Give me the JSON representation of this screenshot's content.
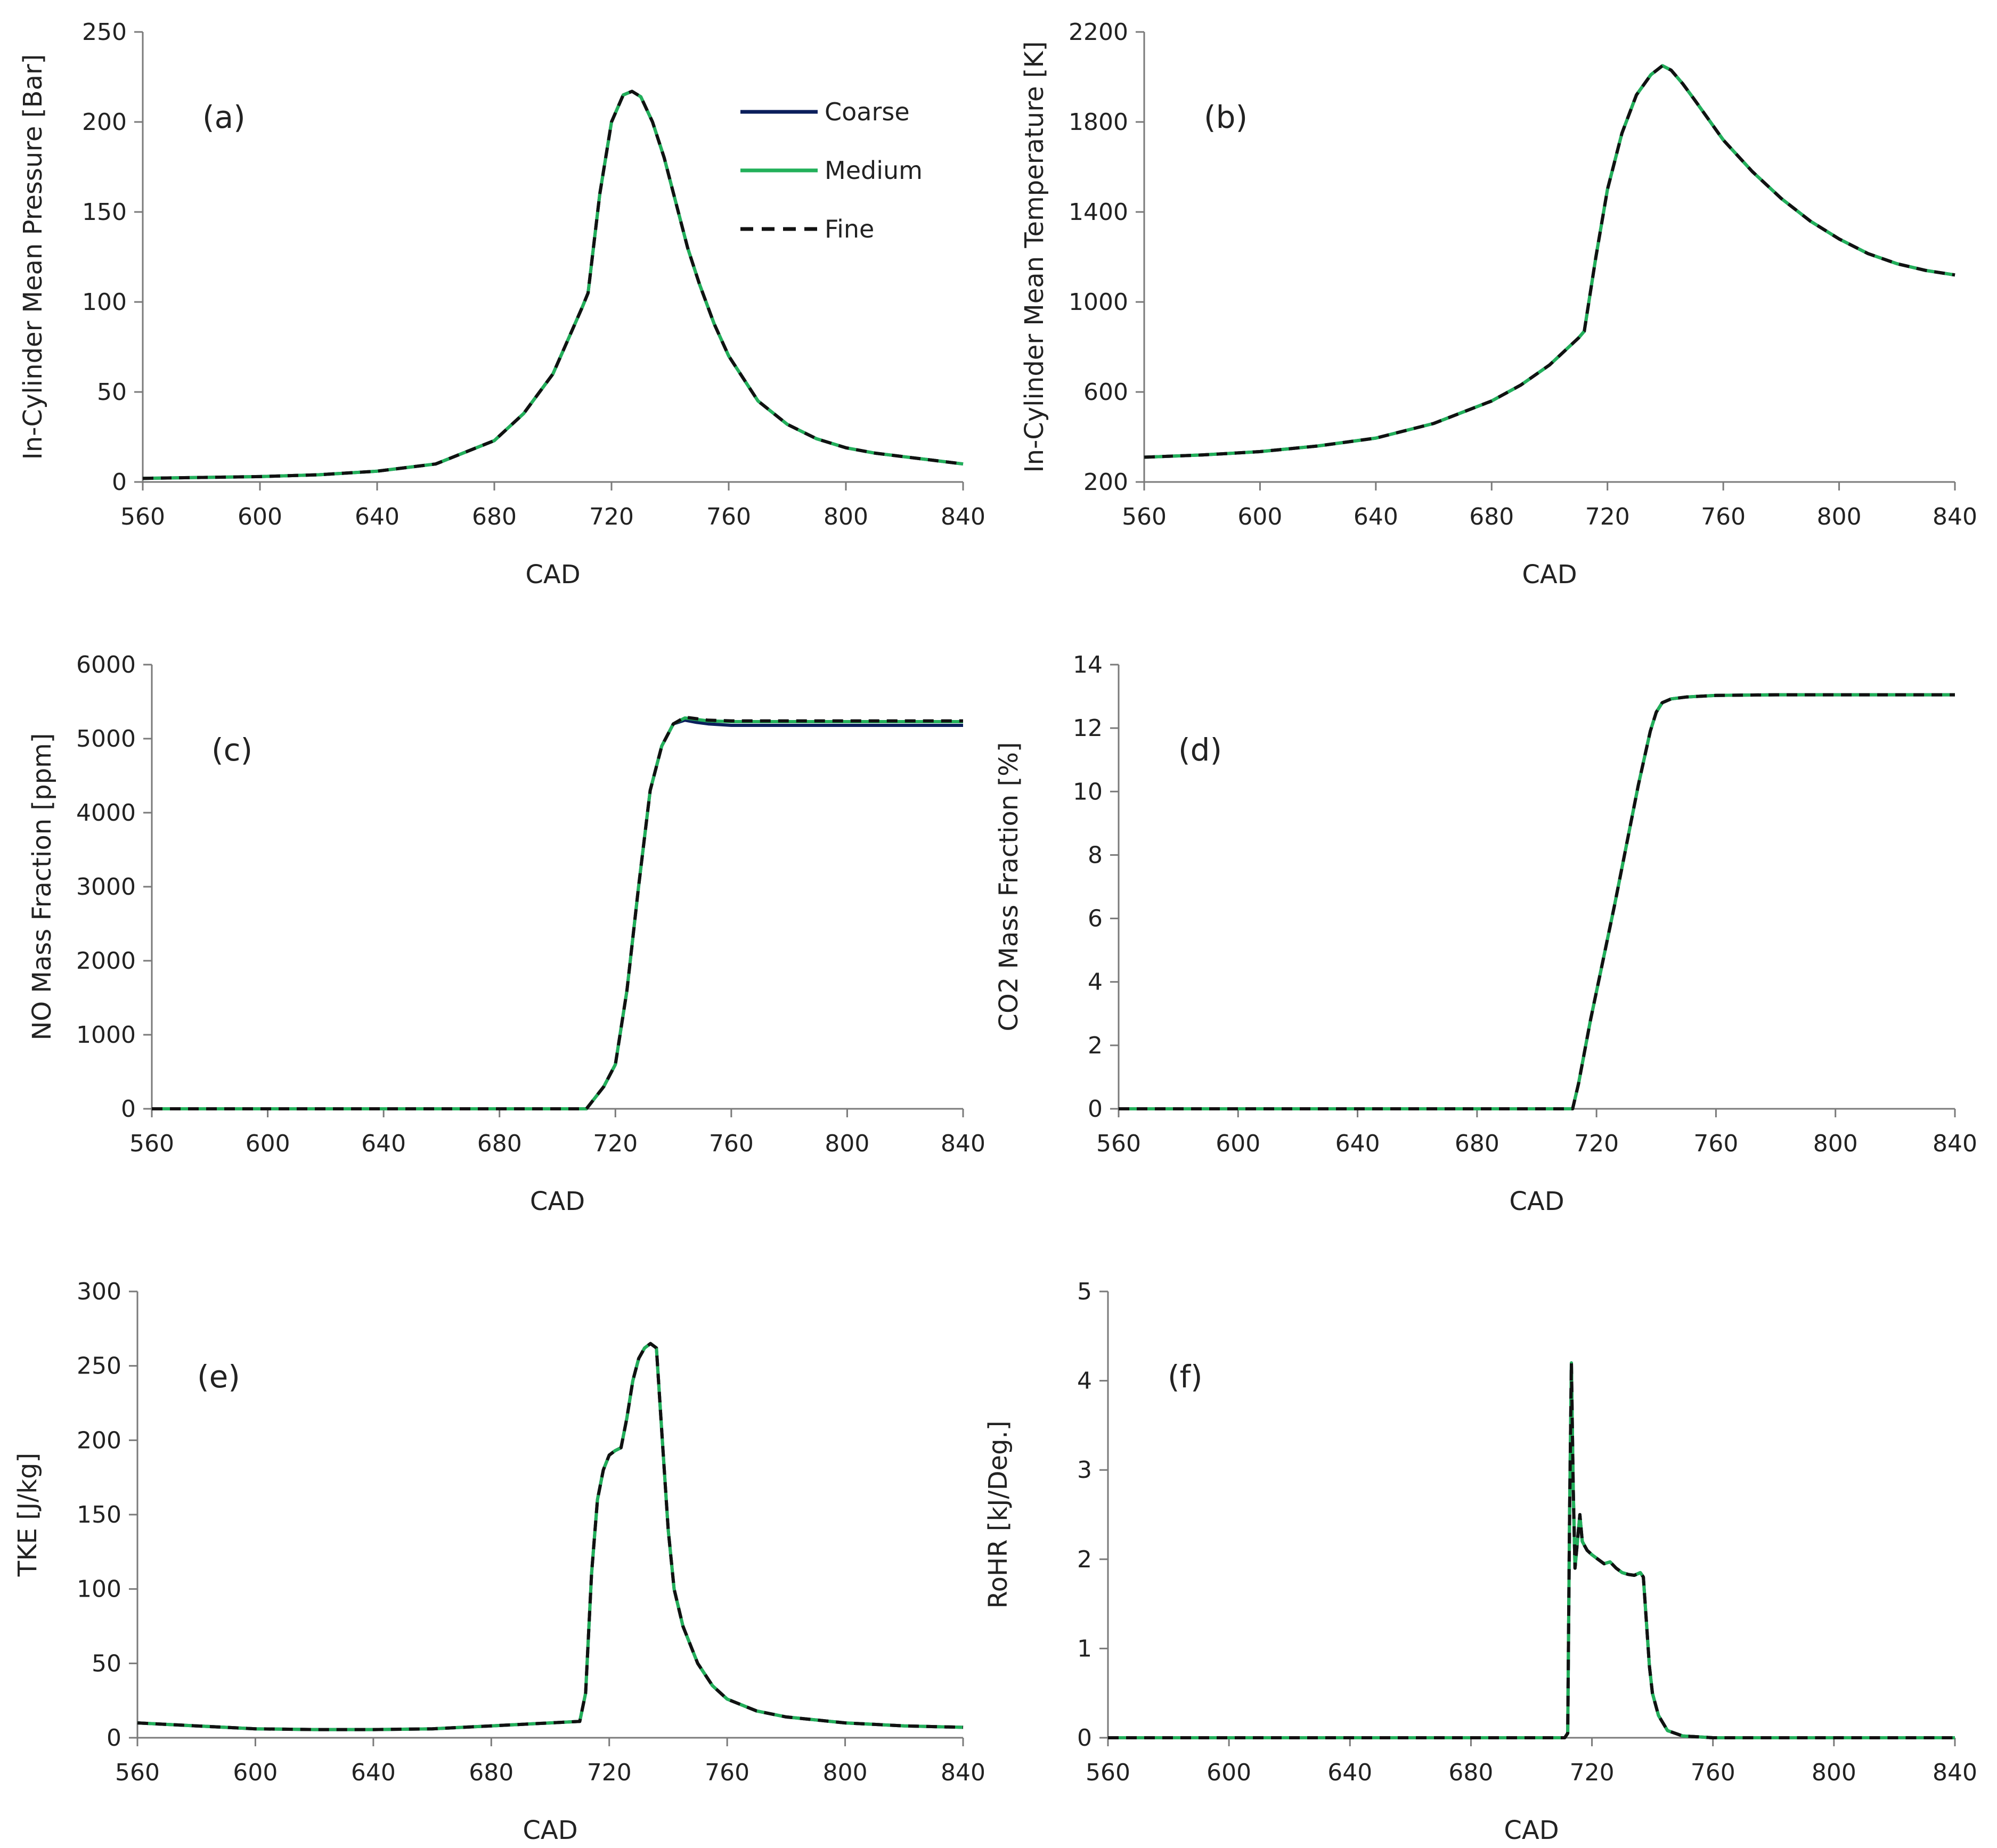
{
  "colors": {
    "coarse": "#0b1f5c",
    "medium": "#22b05a",
    "fine": "#111111",
    "axis": "#7a7a7a"
  },
  "legend": {
    "placement": "top-right of panel (a)",
    "items": [
      {
        "name": "Coarse",
        "color": "#0b1f5c",
        "style": "solid"
      },
      {
        "name": "Medium",
        "color": "#22b05a",
        "style": "solid"
      },
      {
        "name": "Fine",
        "color": "#111111",
        "style": "dashed"
      }
    ]
  },
  "chart_data": [
    {
      "id": "a",
      "type": "line",
      "label": "(a)",
      "ylabel": "In-Cylinder Mean Pressure [Bar]",
      "xlabel": "CAD",
      "xlim": [
        560,
        840
      ],
      "ylim": [
        0,
        250
      ],
      "xticks": [
        "560",
        "600",
        "640",
        "680",
        "720",
        "760",
        "800",
        "840"
      ],
      "yticks": [
        "0",
        "50",
        "100",
        "150",
        "200",
        "250"
      ],
      "x": [
        560,
        580,
        600,
        620,
        640,
        660,
        680,
        690,
        700,
        710,
        712,
        716,
        720,
        724,
        727,
        730,
        734,
        738,
        742,
        746,
        750,
        755,
        760,
        770,
        780,
        790,
        800,
        810,
        820,
        830,
        840
      ],
      "series": [
        {
          "name": "Coarse",
          "values": [
            2,
            2.5,
            3,
            4,
            6,
            10,
            23,
            38,
            60,
            97,
            105,
            160,
            200,
            215,
            217,
            214,
            200,
            180,
            155,
            130,
            110,
            88,
            70,
            45,
            32,
            24,
            19,
            16,
            14,
            12,
            10
          ]
        },
        {
          "name": "Medium",
          "values": [
            2,
            2.5,
            3,
            4,
            6,
            10,
            23,
            38,
            60,
            97,
            105,
            160,
            200,
            215,
            217,
            214,
            200,
            180,
            155,
            130,
            110,
            88,
            70,
            45,
            32,
            24,
            19,
            16,
            14,
            12,
            10
          ]
        },
        {
          "name": "Fine",
          "values": [
            2,
            2.5,
            3,
            4,
            6,
            10,
            23,
            38,
            60,
            97,
            105,
            160,
            200,
            215,
            217,
            214,
            200,
            180,
            155,
            130,
            110,
            88,
            70,
            45,
            32,
            24,
            19,
            16,
            14,
            12,
            10
          ]
        }
      ]
    },
    {
      "id": "b",
      "type": "line",
      "label": "(b)",
      "ylabel": "In-Cylinder Mean Temperature [K]",
      "xlabel": "CAD",
      "xlim": [
        560,
        840
      ],
      "ylim": [
        200,
        2200
      ],
      "xticks": [
        "560",
        "600",
        "640",
        "680",
        "720",
        "760",
        "800",
        "840"
      ],
      "yticks": [
        "200",
        "600",
        "1000",
        "1400",
        "1800",
        "2200"
      ],
      "x": [
        560,
        580,
        600,
        620,
        640,
        660,
        680,
        690,
        700,
        710,
        712,
        716,
        720,
        725,
        730,
        735,
        739,
        742,
        746,
        750,
        760,
        770,
        780,
        790,
        800,
        810,
        820,
        830,
        840
      ],
      "series": [
        {
          "name": "Coarse",
          "values": [
            310,
            320,
            335,
            360,
            395,
            460,
            560,
            630,
            720,
            840,
            870,
            1200,
            1500,
            1750,
            1920,
            2010,
            2050,
            2030,
            1970,
            1900,
            1720,
            1580,
            1460,
            1360,
            1280,
            1215,
            1170,
            1140,
            1120
          ]
        },
        {
          "name": "Medium",
          "values": [
            310,
            320,
            335,
            360,
            395,
            460,
            560,
            630,
            720,
            840,
            870,
            1200,
            1500,
            1750,
            1920,
            2010,
            2050,
            2030,
            1970,
            1900,
            1720,
            1580,
            1460,
            1360,
            1280,
            1215,
            1170,
            1140,
            1120
          ]
        },
        {
          "name": "Fine",
          "values": [
            310,
            320,
            335,
            360,
            395,
            460,
            560,
            630,
            720,
            840,
            870,
            1200,
            1500,
            1750,
            1920,
            2010,
            2050,
            2030,
            1970,
            1900,
            1720,
            1580,
            1460,
            1360,
            1280,
            1215,
            1170,
            1140,
            1120
          ]
        }
      ]
    },
    {
      "id": "c",
      "type": "line",
      "label": "(c)",
      "ylabel": "NO Mass Fraction [ppm]",
      "xlabel": "CAD",
      "xlim": [
        560,
        840
      ],
      "ylim": [
        0,
        6000
      ],
      "xticks": [
        "560",
        "600",
        "640",
        "680",
        "720",
        "760",
        "800",
        "840"
      ],
      "yticks": [
        "0",
        "1000",
        "2000",
        "3000",
        "4000",
        "5000",
        "6000"
      ],
      "x": [
        560,
        600,
        640,
        680,
        710,
        713,
        716,
        720,
        724,
        728,
        732,
        736,
        740,
        744,
        748,
        752,
        760,
        780,
        800,
        820,
        840
      ],
      "series": [
        {
          "name": "Coarse",
          "values": [
            0,
            0,
            0,
            0,
            0,
            150,
            300,
            600,
            1600,
            3000,
            4300,
            4900,
            5200,
            5250,
            5220,
            5200,
            5180,
            5180,
            5180,
            5180,
            5180
          ]
        },
        {
          "name": "Medium",
          "values": [
            0,
            0,
            0,
            0,
            0,
            150,
            300,
            600,
            1600,
            3000,
            4300,
            4900,
            5200,
            5280,
            5260,
            5240,
            5230,
            5230,
            5230,
            5230,
            5230
          ]
        },
        {
          "name": "Fine",
          "values": [
            0,
            0,
            0,
            0,
            0,
            150,
            300,
            600,
            1600,
            3000,
            4300,
            4900,
            5200,
            5290,
            5270,
            5250,
            5240,
            5240,
            5240,
            5240,
            5240
          ]
        }
      ]
    },
    {
      "id": "d",
      "type": "line",
      "label": "(d)",
      "ylabel": "CO2 Mass Fraction [%]",
      "xlabel": "CAD",
      "xlim": [
        560,
        840
      ],
      "ylim": [
        0,
        14
      ],
      "xticks": [
        "560",
        "600",
        "640",
        "680",
        "720",
        "760",
        "800",
        "840"
      ],
      "yticks": [
        "0",
        "2",
        "4",
        "6",
        "8",
        "10",
        "12",
        "14"
      ],
      "x": [
        560,
        600,
        640,
        680,
        712,
        714,
        718,
        722,
        726,
        730,
        734,
        738,
        740,
        742,
        745,
        750,
        760,
        780,
        800,
        840
      ],
      "series": [
        {
          "name": "Coarse",
          "values": [
            0,
            0,
            0,
            0,
            0,
            0.8,
            2.8,
            4.6,
            6.4,
            8.3,
            10.2,
            11.9,
            12.5,
            12.8,
            12.92,
            12.98,
            13.03,
            13.05,
            13.05,
            13.05
          ]
        },
        {
          "name": "Medium",
          "values": [
            0,
            0,
            0,
            0,
            0,
            0.8,
            2.8,
            4.6,
            6.4,
            8.3,
            10.2,
            11.9,
            12.5,
            12.8,
            12.92,
            12.98,
            13.03,
            13.05,
            13.05,
            13.05
          ]
        },
        {
          "name": "Fine",
          "values": [
            0,
            0,
            0,
            0,
            0,
            0.8,
            2.8,
            4.6,
            6.4,
            8.3,
            10.2,
            11.9,
            12.5,
            12.8,
            12.92,
            12.98,
            13.03,
            13.05,
            13.05,
            13.05
          ]
        }
      ]
    },
    {
      "id": "e",
      "type": "line",
      "label": "(e)",
      "ylabel": "TKE [J/kg]",
      "xlabel": "CAD",
      "xlim": [
        560,
        840
      ],
      "ylim": [
        0,
        300
      ],
      "xticks": [
        "560",
        "600",
        "640",
        "680",
        "720",
        "760",
        "800",
        "840"
      ],
      "yticks": [
        "0",
        "50",
        "100",
        "150",
        "200",
        "250",
        "300"
      ],
      "x": [
        560,
        580,
        600,
        620,
        640,
        660,
        680,
        700,
        710,
        712,
        714,
        716,
        718,
        720,
        722,
        724,
        726,
        728,
        730,
        732,
        734,
        736,
        738,
        740,
        742,
        745,
        750,
        755,
        760,
        770,
        780,
        800,
        820,
        840
      ],
      "series": [
        {
          "name": "Coarse",
          "values": [
            10,
            8,
            6,
            5.5,
            5.5,
            6,
            8,
            10,
            11,
            30,
            110,
            160,
            180,
            190,
            193,
            195,
            215,
            240,
            255,
            262,
            265,
            262,
            200,
            140,
            100,
            75,
            50,
            35,
            26,
            18,
            14,
            10,
            8,
            7
          ]
        },
        {
          "name": "Medium",
          "values": [
            10,
            8,
            6,
            5.5,
            5.5,
            6,
            8,
            10,
            11,
            30,
            110,
            160,
            180,
            190,
            193,
            195,
            215,
            240,
            255,
            262,
            265,
            262,
            200,
            140,
            100,
            75,
            50,
            35,
            26,
            18,
            14,
            10,
            8,
            7
          ]
        },
        {
          "name": "Fine",
          "values": [
            10,
            8,
            6,
            5.5,
            5.5,
            6,
            8,
            10,
            11,
            30,
            110,
            160,
            180,
            190,
            193,
            195,
            215,
            240,
            255,
            262,
            265,
            262,
            200,
            140,
            100,
            75,
            50,
            35,
            26,
            18,
            14,
            10,
            8,
            7
          ]
        }
      ]
    },
    {
      "id": "f",
      "type": "line",
      "label": "(f)",
      "ylabel": "RoHR [kJ/Deg.]",
      "xlabel": "CAD",
      "xlim": [
        560,
        840
      ],
      "ylim": [
        0,
        5
      ],
      "xticks": [
        "560",
        "600",
        "640",
        "680",
        "720",
        "760",
        "800",
        "840"
      ],
      "yticks": [
        "0",
        "1",
        "2",
        "3",
        "4",
        "5"
      ],
      "x": [
        560,
        600,
        640,
        680,
        711,
        712,
        712.6,
        713.2,
        713.8,
        714.4,
        715.2,
        716,
        716.8,
        717.6,
        718.4,
        720,
        722,
        724,
        726,
        728,
        730,
        732,
        734,
        736,
        737,
        738,
        739,
        740,
        742,
        745,
        750,
        755,
        760,
        780,
        800,
        840
      ],
      "series": [
        {
          "name": "Coarse",
          "values": [
            0,
            0,
            0,
            0,
            0,
            0.05,
            2.5,
            4.2,
            2.8,
            1.9,
            2.2,
            2.5,
            2.2,
            2.15,
            2.1,
            2.05,
            2.0,
            1.95,
            1.97,
            1.9,
            1.85,
            1.83,
            1.82,
            1.85,
            1.8,
            1.3,
            0.8,
            0.5,
            0.25,
            0.08,
            0.02,
            0.01,
            0,
            0,
            0,
            0
          ]
        },
        {
          "name": "Medium",
          "values": [
            0,
            0,
            0,
            0,
            0,
            0.05,
            2.5,
            4.2,
            2.8,
            1.9,
            2.2,
            2.5,
            2.2,
            2.15,
            2.1,
            2.05,
            2.0,
            1.95,
            1.97,
            1.9,
            1.85,
            1.83,
            1.82,
            1.85,
            1.8,
            1.3,
            0.8,
            0.5,
            0.25,
            0.08,
            0.02,
            0.01,
            0,
            0,
            0,
            0
          ]
        },
        {
          "name": "Fine",
          "values": [
            0,
            0,
            0,
            0,
            0,
            0.05,
            2.5,
            4.2,
            2.8,
            1.9,
            2.2,
            2.5,
            2.2,
            2.15,
            2.1,
            2.05,
            2.0,
            1.95,
            1.97,
            1.9,
            1.85,
            1.83,
            1.82,
            1.85,
            1.8,
            1.3,
            0.8,
            0.5,
            0.25,
            0.08,
            0.02,
            0.01,
            0,
            0,
            0,
            0
          ]
        }
      ]
    }
  ]
}
